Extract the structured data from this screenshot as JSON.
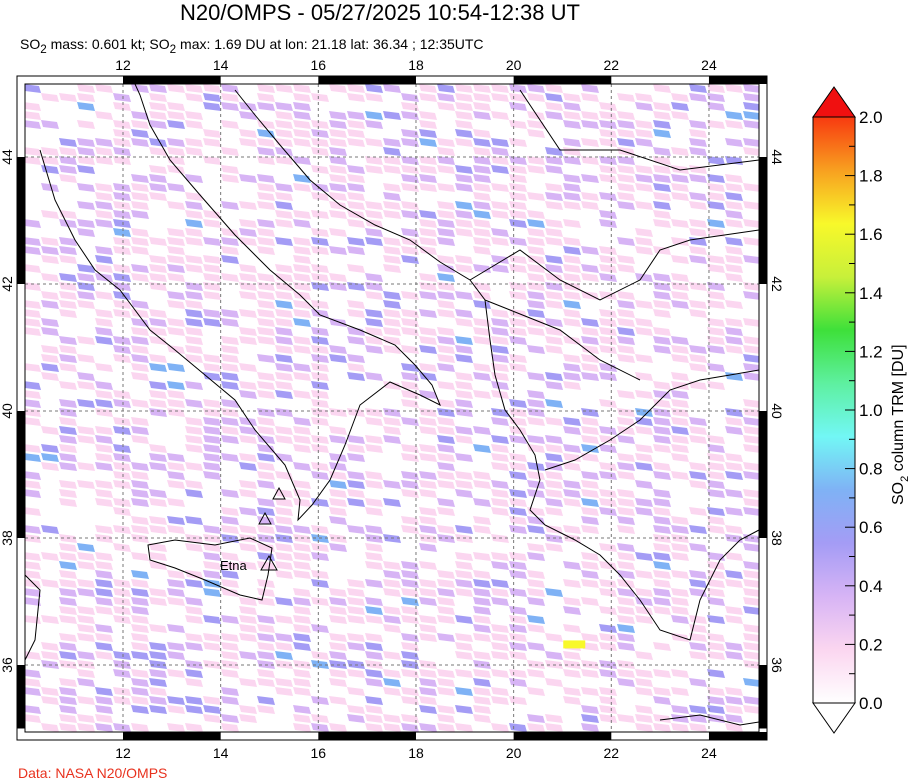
{
  "title": "N20/OMPS - 05/27/2025 10:54-12:38 UT",
  "subtitle": {
    "p1": "SO",
    "s1": "2",
    "p2": " mass: 0.601 kt; SO",
    "s2": "2",
    "p3": " max: 1.69 DU at lon: 21.18 lat: 36.34 ; 12:35UTC"
  },
  "credit": "Data: NASA N20/OMPS",
  "map": {
    "lon_range": [
      10,
      25
    ],
    "lat_range": [
      35,
      45
    ],
    "lon_ticks": [
      "12",
      "14",
      "16",
      "18",
      "20",
      "22",
      "24"
    ],
    "lat_ticks": [
      "36",
      "38",
      "40",
      "42",
      "44"
    ],
    "volcano_label": "Etna",
    "max_point": {
      "lon": 21.18,
      "lat": 36.34,
      "value": 1.69
    }
  },
  "colorbar": {
    "label_main": "SO",
    "label_sub": "2",
    "label_rest": " column TRM [DU]",
    "ticks": [
      "0.0",
      "0.2",
      "0.4",
      "0.6",
      "0.8",
      "1.0",
      "1.2",
      "1.4",
      "1.6",
      "1.8",
      "2.0"
    ],
    "range": [
      0,
      2.0
    ],
    "colors": [
      "#ffffff",
      "#fbd6f0",
      "#d7b4f5",
      "#a49cf5",
      "#7fb2f5",
      "#72f7f5",
      "#5ef0a0",
      "#3ee03a",
      "#c8f03a",
      "#f8f82a",
      "#f8a020",
      "#f83a10",
      "#f01010"
    ]
  }
}
